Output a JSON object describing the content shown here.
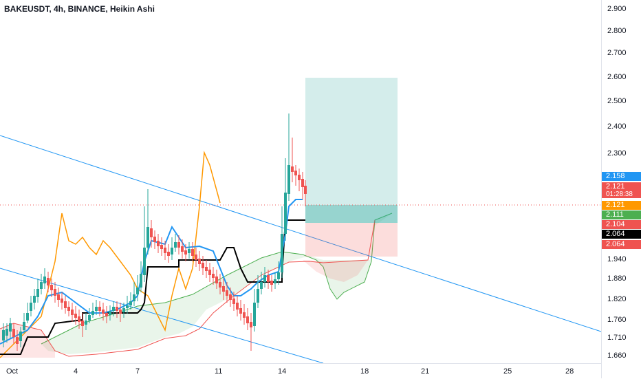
{
  "header": {
    "title": "BAKEUSDT, 4h, BINANCE, Heikin Ashi"
  },
  "price_axis": {
    "ticks": [
      {
        "v": 2.9,
        "label": "2.900"
      },
      {
        "v": 2.8,
        "label": "2.800"
      },
      {
        "v": 2.7,
        "label": "2.700"
      },
      {
        "v": 2.6,
        "label": "2.600"
      },
      {
        "v": 2.5,
        "label": "2.500"
      },
      {
        "v": 2.4,
        "label": "2.400"
      },
      {
        "v": 2.3,
        "label": "2.300"
      },
      {
        "v": 1.94,
        "label": "1.940"
      },
      {
        "v": 1.88,
        "label": "1.880"
      },
      {
        "v": 1.82,
        "label": "1.820"
      },
      {
        "v": 1.76,
        "label": "1.760"
      },
      {
        "v": 1.71,
        "label": "1.710"
      },
      {
        "v": 1.66,
        "label": "1.660"
      }
    ],
    "tags": [
      {
        "value": "2.158",
        "color": "#2196f3"
      },
      {
        "value": "2.121",
        "color": "#ef5350"
      },
      {
        "value": "01:28:38",
        "color": "#ef5350"
      },
      {
        "value": "2.121",
        "color": "#ff9800"
      },
      {
        "value": "2.111",
        "color": "#4caf50"
      },
      {
        "value": "2.104",
        "color": "#ef5350"
      },
      {
        "value": "2.064",
        "color": "#000000"
      },
      {
        "value": "2.064",
        "color": "#ef5350"
      }
    ]
  },
  "time_axis": {
    "ticks": [
      "Oct",
      "4",
      "7",
      "11",
      "14",
      "18",
      "21",
      "25",
      "28"
    ]
  },
  "colors": {
    "up": "#26a69a",
    "down": "#ef5350",
    "conversion": "#2196f3",
    "base": "#000000",
    "lagging": "#ff9800",
    "trendline": "#2196f3",
    "cloud_green": "#4caf50",
    "cloud_red": "#ef5350",
    "target": "#26a69a",
    "stop": "#ef5350"
  }
}
